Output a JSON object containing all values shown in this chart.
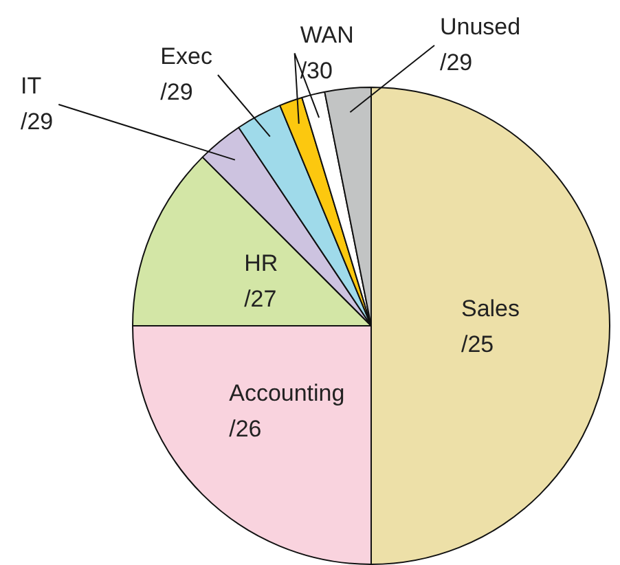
{
  "chart_data": {
    "type": "pie",
    "categories": [
      "Sales /25",
      "Accounting /26",
      "HR /27",
      "IT /29",
      "Exec /29",
      "WAN /30",
      null,
      "Unused /29"
    ],
    "values": [
      50,
      25,
      12.5,
      3.125,
      3.125,
      1.5625,
      1.5625,
      3.125
    ],
    "colors": [
      "#ede0a8",
      "#f9d3de",
      "#d3e6a6",
      "#cdc3e0",
      "#9fdaea",
      "#fcc80f",
      "#ffffff",
      "#c2c4c4"
    ]
  }
}
